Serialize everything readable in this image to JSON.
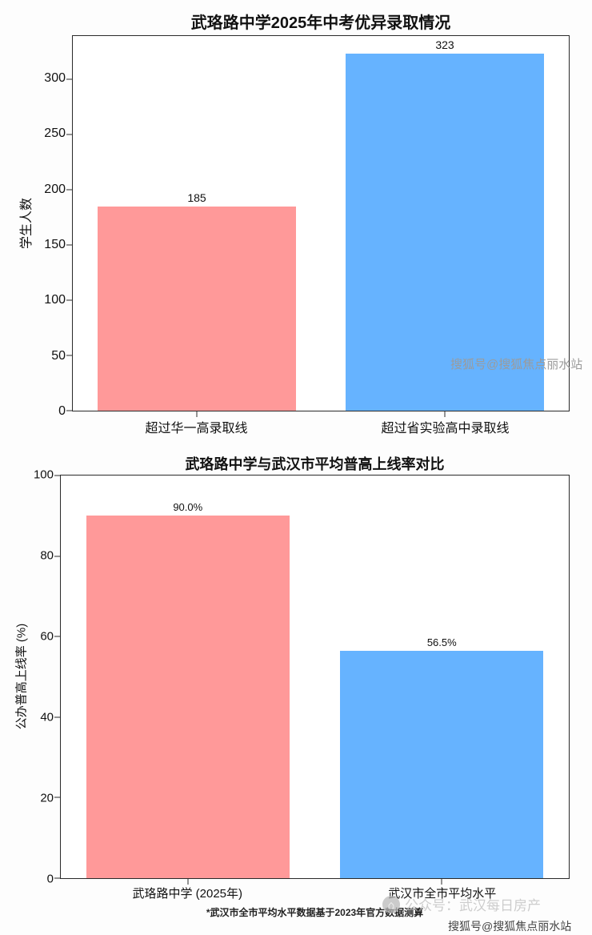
{
  "chart_data": [
    {
      "type": "bar",
      "title": "武珞路中学2025年中考优异录取情况",
      "categories": [
        "超过华一高录取线",
        "超过省实验高中录取线"
      ],
      "values": [
        185,
        323
      ],
      "value_labels": [
        "185",
        "323"
      ],
      "colors": [
        "#FF9999",
        "#66B3FF"
      ],
      "xlabel": "",
      "ylabel": "学生人数",
      "ylim": [
        0,
        339
      ],
      "yticks": [
        0,
        50,
        100,
        150,
        200,
        250,
        300
      ],
      "grid": false,
      "legend": "none"
    },
    {
      "type": "bar",
      "title": "武珞路中学与武汉市平均普高上线率对比",
      "categories": [
        "武珞路中学 (2025年)",
        "武汉市全市平均水平"
      ],
      "values": [
        90.0,
        56.5
      ],
      "value_labels": [
        "90.0%",
        "56.5%"
      ],
      "colors": [
        "#FF9999",
        "#66B3FF"
      ],
      "xlabel": "",
      "ylabel": "公办普高上线率 (%)",
      "ylim": [
        0,
        100
      ],
      "yticks": [
        0,
        20,
        40,
        60,
        80,
        100
      ],
      "grid": false,
      "legend": "none"
    }
  ],
  "footnote": "*武汉市全市平均水平数据基于2023年官方数据测算",
  "watermarks": {
    "top_right": "搜狐号@搜狐焦点丽水站",
    "bottom_center": "公众号：武汉每日房产",
    "bottom_center_logo_glyph": "⌂",
    "bottom_right": "搜狐号@搜狐焦点丽水站"
  }
}
